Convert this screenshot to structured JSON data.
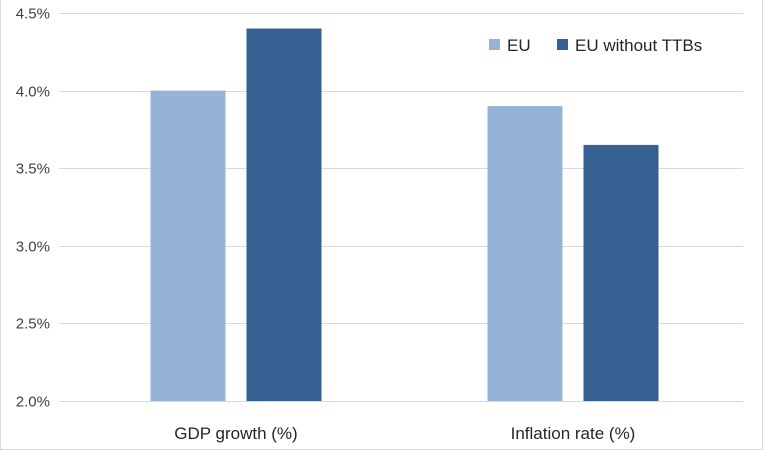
{
  "chart_data": {
    "type": "bar",
    "categories": [
      "GDP growth (%)",
      "Inflation rate (%)"
    ],
    "series": [
      {
        "name": "EU",
        "values": [
          4.0,
          3.9
        ],
        "color": "#95b3d7"
      },
      {
        "name": "EU without TTBs",
        "values": [
          4.4,
          3.65
        ],
        "color": "#366092"
      }
    ],
    "ylim": [
      2.0,
      4.5
    ],
    "yticks": [
      2.0,
      2.5,
      3.0,
      3.5,
      4.0,
      4.5
    ],
    "ytick_labels": [
      "2.0%",
      "2.5%",
      "3.0%",
      "3.5%",
      "4.0%",
      "4.5%"
    ],
    "grid": true,
    "legend_position": "top-right",
    "title": "",
    "xlabel": "",
    "ylabel": ""
  }
}
